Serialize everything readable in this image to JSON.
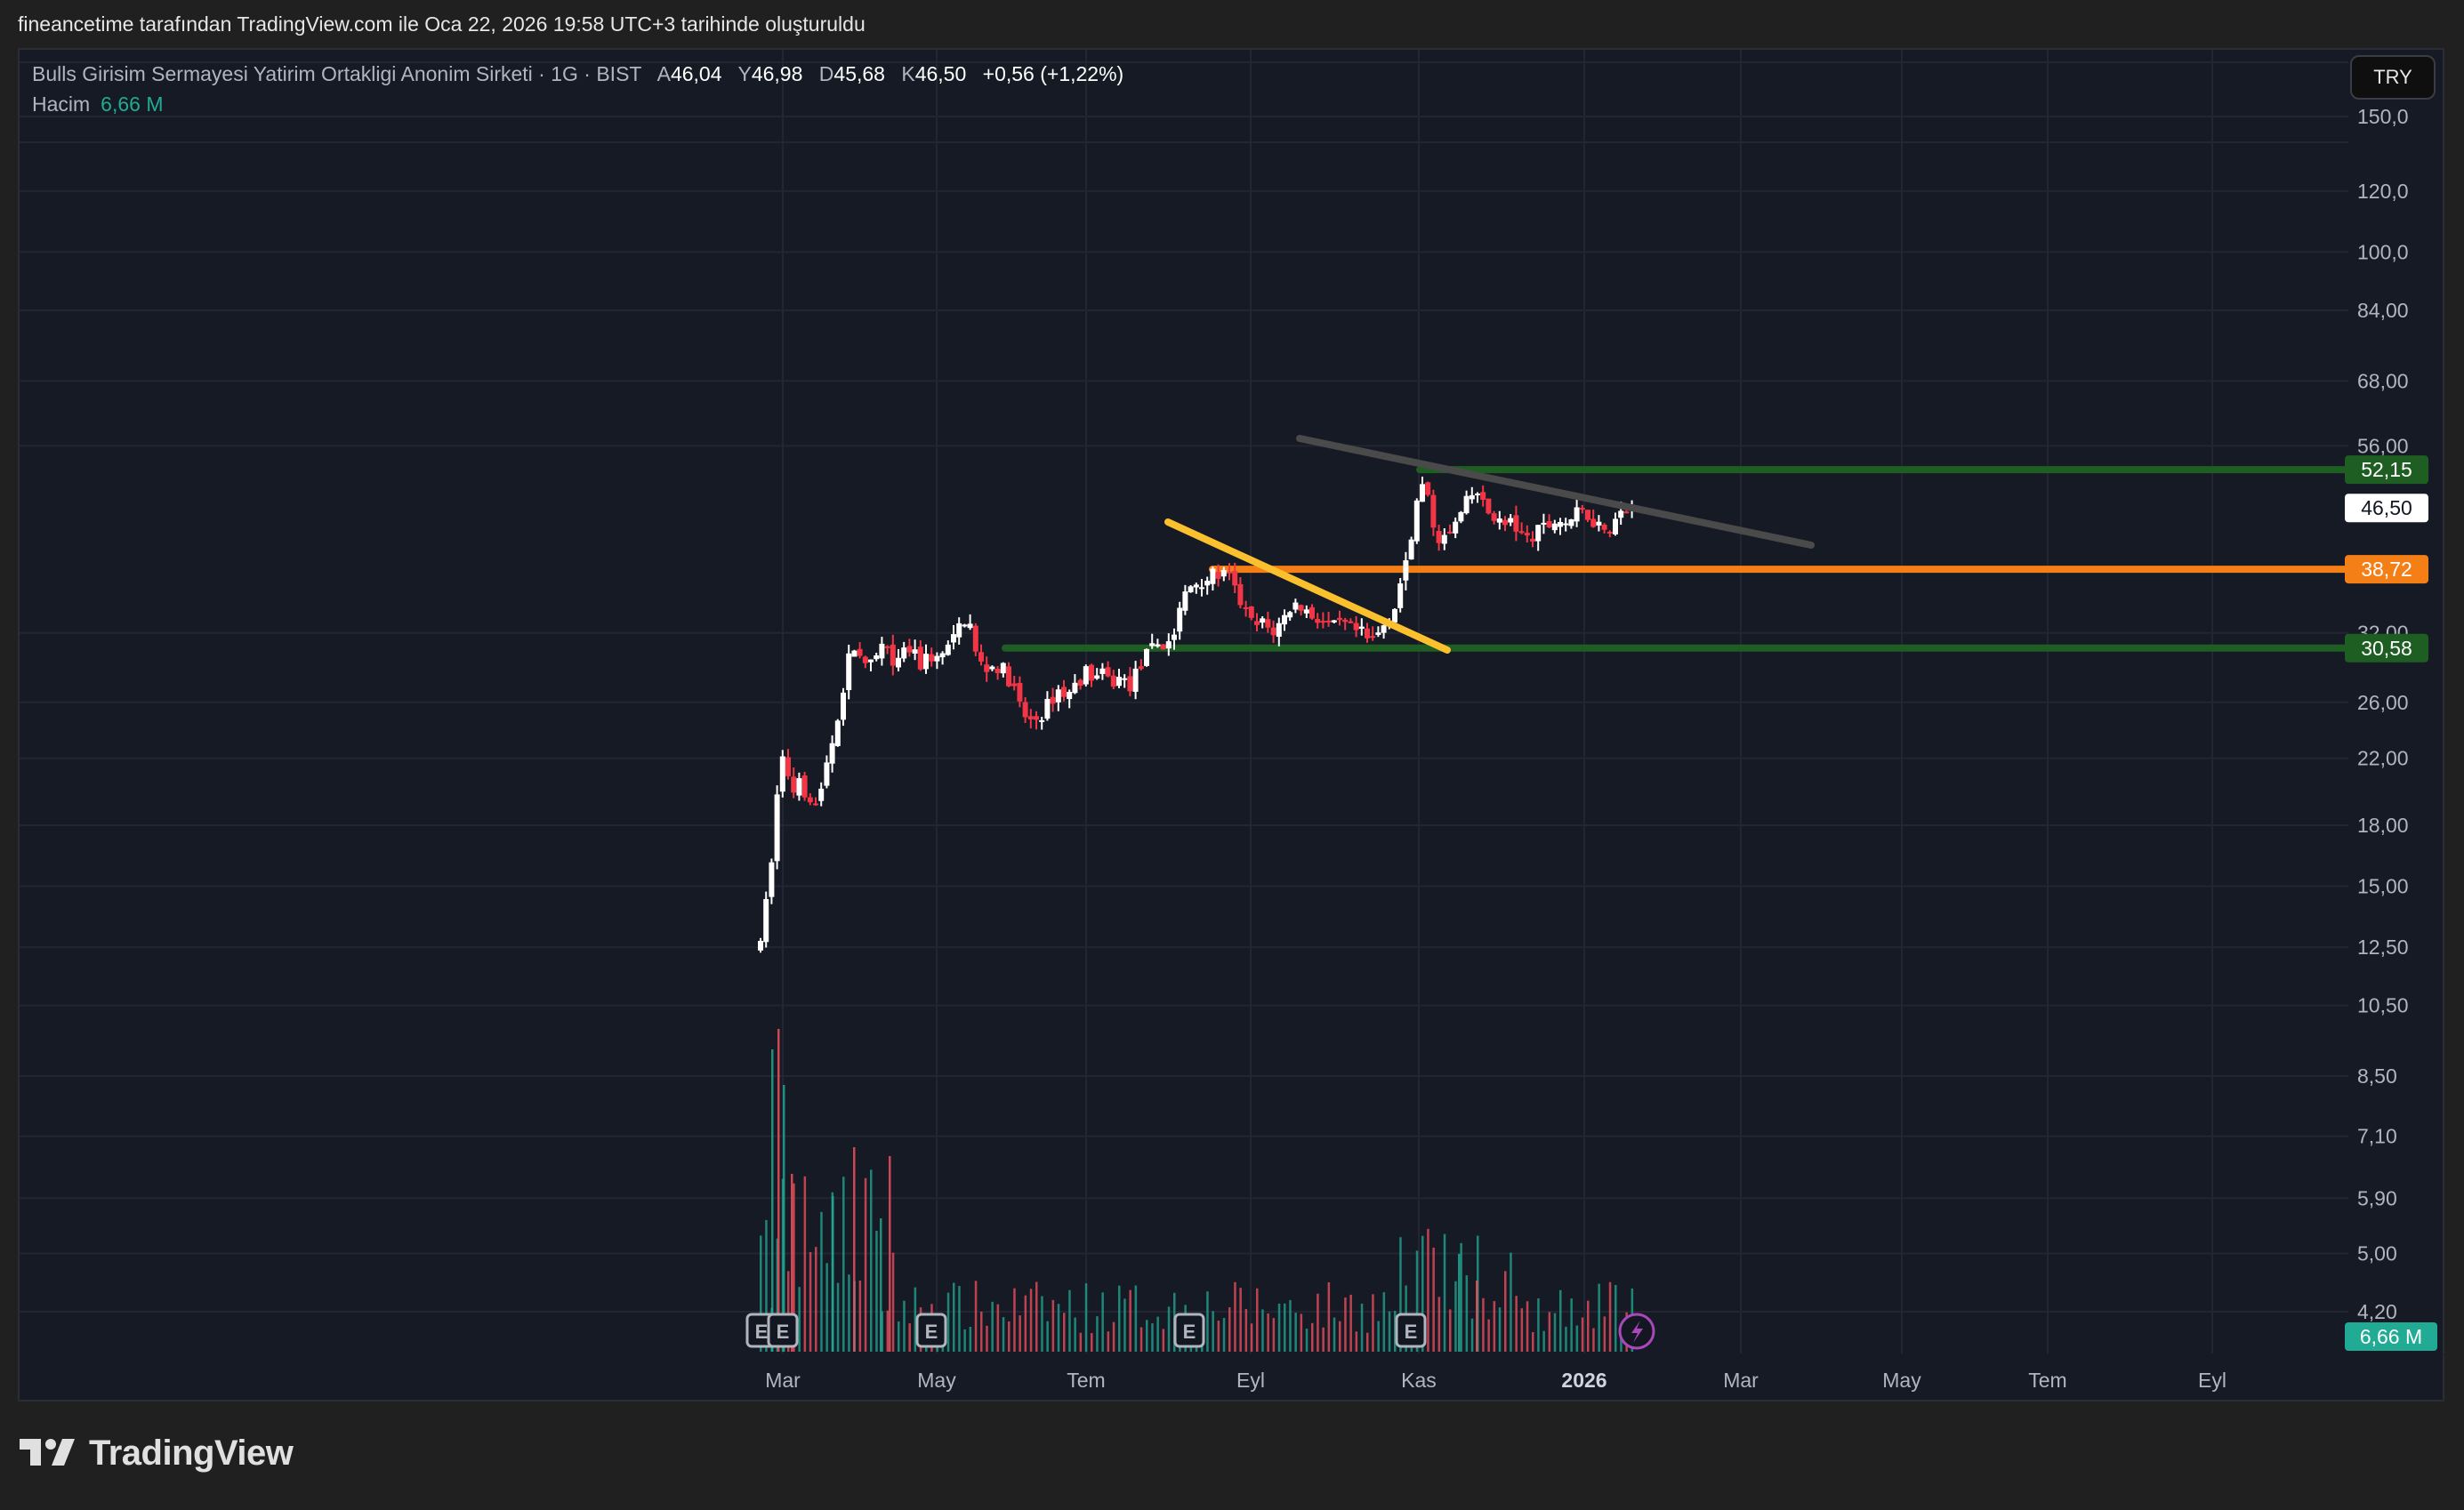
{
  "credit": "fineancetime tarafından TradingView.com ile Oca 22, 2026 19:58 UTC+3 tarihinde oluşturuldu",
  "legend": {
    "symbol": "Bulls Girisim Sermayesi Yatirim Ortakligi Anonim Sirketi · 1G · BIST",
    "open_label": "A",
    "open": "46,04",
    "high_label": "Y",
    "high": "46,98",
    "low_label": "D",
    "low": "45,68",
    "close_label": "K",
    "close": "46,50",
    "change": "+0,56 (+1,22%)",
    "volume_label": "Hacim",
    "volume": "6,66 M"
  },
  "currency_button": "TRY",
  "logo_text": "TradingView",
  "colors": {
    "up_candle": "#ffffff",
    "down_candle": "#f23645",
    "volume_up": "#22ab94",
    "volume_down": "#f7525f",
    "green_line": "#1e5e22",
    "orange_line": "#f57f17",
    "yellow_trend": "#fbc02d",
    "gray_trend": "#4a4a4a",
    "earnings_badge": "#b2b5be",
    "dividend_icon": "#ab47bc"
  },
  "chart_data": {
    "type": "candlestick",
    "title": "Bulls Girisim Sermayesi Yatirim Ortakligi Anonim Sirketi · 1G · BIST",
    "xlabel": "",
    "ylabel": "TRY",
    "scale": "log",
    "ylim": [
      4.2,
      150
    ],
    "y_ticks": [
      "150,0",
      "120,0",
      "100,0",
      "84,00",
      "68,00",
      "56,00",
      "32,00",
      "26,00",
      "22,00",
      "18,00",
      "15,00",
      "12,50",
      "10,50",
      "8,50",
      "7,10",
      "5,90",
      "5,00",
      "4,20"
    ],
    "y_tick_values": [
      150,
      120,
      100,
      84,
      68,
      56,
      32,
      26,
      22,
      18,
      15,
      12.5,
      10.5,
      8.5,
      7.1,
      5.9,
      5.0,
      4.2
    ],
    "x_ticks": [
      {
        "label": "Mar",
        "x": 880,
        "bold": false
      },
      {
        "label": "May",
        "x": 1053,
        "bold": false
      },
      {
        "label": "Tem",
        "x": 1221,
        "bold": false
      },
      {
        "label": "Eyl",
        "x": 1406,
        "bold": false
      },
      {
        "label": "Kas",
        "x": 1595,
        "bold": false
      },
      {
        "label": "2026",
        "x": 1781,
        "bold": true
      },
      {
        "label": "Mar",
        "x": 1957,
        "bold": false
      },
      {
        "label": "May",
        "x": 2138,
        "bold": false
      },
      {
        "label": "Tem",
        "x": 2302,
        "bold": false
      },
      {
        "label": "Eyl",
        "x": 2487,
        "bold": false
      }
    ],
    "price_path": [
      [
        855,
        12.5
      ],
      [
        862,
        14.5
      ],
      [
        868,
        16.5
      ],
      [
        874,
        20
      ],
      [
        880,
        22
      ],
      [
        886,
        21
      ],
      [
        892,
        20
      ],
      [
        898,
        21
      ],
      [
        904,
        20
      ],
      [
        912,
        19.5
      ],
      [
        920,
        19
      ],
      [
        930,
        22
      ],
      [
        940,
        24
      ],
      [
        950,
        28
      ],
      [
        958,
        31
      ],
      [
        966,
        30
      ],
      [
        974,
        28.5
      ],
      [
        984,
        29.5
      ],
      [
        994,
        31
      ],
      [
        1004,
        28.5
      ],
      [
        1014,
        30
      ],
      [
        1024,
        30.5
      ],
      [
        1034,
        29
      ],
      [
        1044,
        30
      ],
      [
        1054,
        29.5
      ],
      [
        1064,
        30.5
      ],
      [
        1074,
        31.5
      ],
      [
        1082,
        33.5
      ],
      [
        1090,
        33
      ],
      [
        1098,
        29.5
      ],
      [
        1108,
        28.8
      ],
      [
        1120,
        29
      ],
      [
        1130,
        28.5
      ],
      [
        1140,
        27
      ],
      [
        1150,
        25
      ],
      [
        1160,
        24.5
      ],
      [
        1170,
        25
      ],
      [
        1180,
        26
      ],
      [
        1190,
        27
      ],
      [
        1200,
        26.5
      ],
      [
        1210,
        27.5
      ],
      [
        1220,
        28.5
      ],
      [
        1230,
        28
      ],
      [
        1240,
        28.2
      ],
      [
        1250,
        27.5
      ],
      [
        1260,
        28
      ],
      [
        1270,
        27.3
      ],
      [
        1280,
        28.8
      ],
      [
        1290,
        30
      ],
      [
        1300,
        31
      ],
      [
        1310,
        30.8
      ],
      [
        1320,
        32
      ],
      [
        1330,
        35.5
      ],
      [
        1340,
        37
      ],
      [
        1350,
        37.5
      ],
      [
        1360,
        37.8
      ],
      [
        1370,
        38.2
      ],
      [
        1380,
        38
      ],
      [
        1390,
        36
      ],
      [
        1400,
        34
      ],
      [
        1410,
        32.5
      ],
      [
        1420,
        33
      ],
      [
        1430,
        32
      ],
      [
        1440,
        33
      ],
      [
        1450,
        34.5
      ],
      [
        1460,
        35
      ],
      [
        1470,
        34
      ],
      [
        1480,
        33.5
      ],
      [
        1490,
        33
      ],
      [
        1500,
        32.5
      ],
      [
        1510,
        32.8
      ],
      [
        1520,
        32.2
      ],
      [
        1530,
        32
      ],
      [
        1540,
        31
      ],
      [
        1550,
        32
      ],
      [
        1560,
        33.5
      ],
      [
        1570,
        35
      ],
      [
        1576,
        38
      ],
      [
        1582,
        40.5
      ],
      [
        1588,
        44
      ],
      [
        1594,
        48
      ],
      [
        1600,
        50
      ],
      [
        1606,
        47
      ],
      [
        1612,
        44
      ],
      [
        1620,
        42
      ],
      [
        1630,
        43
      ],
      [
        1640,
        45
      ],
      [
        1650,
        47.5
      ],
      [
        1660,
        49
      ],
      [
        1670,
        46
      ],
      [
        1680,
        45.5
      ],
      [
        1690,
        44
      ],
      [
        1700,
        44.5
      ],
      [
        1710,
        43
      ],
      [
        1720,
        42
      ],
      [
        1730,
        43.5
      ],
      [
        1740,
        44
      ],
      [
        1750,
        45
      ],
      [
        1760,
        44.5
      ],
      [
        1770,
        45.5
      ],
      [
        1780,
        46
      ],
      [
        1790,
        45
      ],
      [
        1800,
        44
      ],
      [
        1810,
        44.2
      ],
      [
        1820,
        45.5
      ],
      [
        1830,
        46.2
      ],
      [
        1840,
        46.5
      ]
    ],
    "horizontal_levels": [
      {
        "price": 52.15,
        "label": "52,15",
        "color": "#1e5e22",
        "x_start": 1596
      },
      {
        "price": 38.72,
        "label": "38,72",
        "color": "#f57f17",
        "x_start": 1363
      },
      {
        "price": 30.58,
        "label": "30,58",
        "color": "#1e5e22",
        "x_start": 1130
      }
    ],
    "last_price": {
      "price": 46.5,
      "label": "46,50"
    },
    "trendlines": [
      {
        "color": "#fbc02d",
        "x1": 1313,
        "y1": 587,
        "x2": 1627,
        "y2": 731
      },
      {
        "color": "#4a4a4a",
        "x1": 1461,
        "y1": 493,
        "x2": 2036,
        "y2": 613
      }
    ],
    "volume": {
      "last_label": "6,66 M",
      "baseline_y": 1520,
      "max_height": 365,
      "bars_spikes": [
        [
          868,
          340
        ],
        [
          875,
          363
        ],
        [
          881,
          300
        ],
        [
          890,
          200
        ],
        [
          936,
          175
        ],
        [
          960,
          230
        ],
        [
          990,
          150
        ],
        [
          1000,
          220
        ],
        [
          1640,
          110
        ],
        [
          1660,
          80
        ]
      ]
    },
    "events": [
      {
        "type": "earnings",
        "label": "E",
        "x": 856
      },
      {
        "type": "earnings",
        "label": "E",
        "x": 880
      },
      {
        "type": "earnings",
        "label": "E",
        "x": 1047
      },
      {
        "type": "earnings",
        "label": "E",
        "x": 1337
      },
      {
        "type": "earnings",
        "label": "E",
        "x": 1586
      },
      {
        "type": "dividend",
        "label": "⚡",
        "x": 1840
      }
    ],
    "grid": true
  }
}
